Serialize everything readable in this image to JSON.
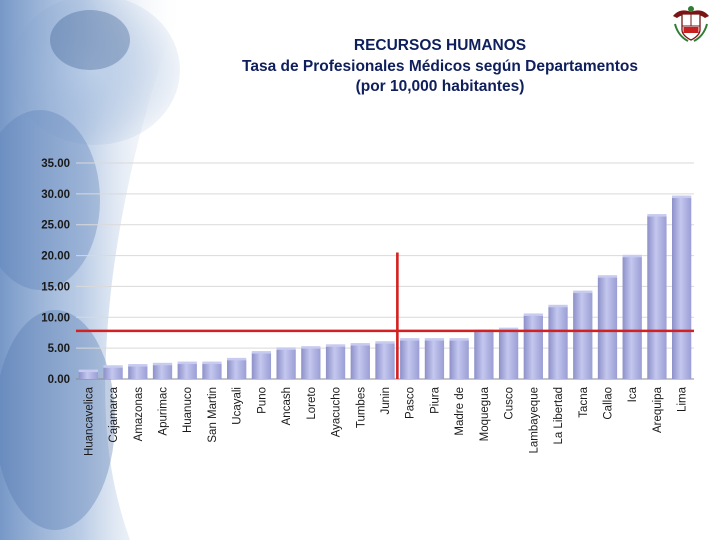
{
  "header": {
    "title": "RECURSOS HUMANOS",
    "subtitle_line1": "Tasa de Profesionales Médicos según Departamentos",
    "subtitle_line2": "(por 10,000 habitantes)"
  },
  "colors": {
    "title": "#0f1f5c",
    "bar": "#aaaee0",
    "reference_line": "#d42020",
    "background_gradient": "#6f93c6"
  },
  "emblem": "peru-coat-of-arms-icon",
  "chart_data": {
    "type": "bar",
    "categories": [
      "Huancavelica",
      "Cajamarca",
      "Amazonas",
      "Apurimac",
      "Huanuco",
      "San Martin",
      "Ucayali",
      "Puno",
      "Ancash",
      "Loreto",
      "Ayacucho",
      "Tumbes",
      "Junin",
      "Pasco",
      "Piura",
      "Madre de",
      "Moquegua",
      "Cusco",
      "Lambayeque",
      "La Libertad",
      "Tacna",
      "Callao",
      "Ica",
      "Arequipa",
      "Lima"
    ],
    "values": [
      1.2,
      1.9,
      2.1,
      2.3,
      2.5,
      2.5,
      3.1,
      4.2,
      4.8,
      5.0,
      5.3,
      5.5,
      5.8,
      6.3,
      6.3,
      6.3,
      7.7,
      8.0,
      10.3,
      11.7,
      14.0,
      16.5,
      19.8,
      26.4,
      29.4
    ],
    "ylim": [
      0,
      35
    ],
    "yticks": [
      "0.00",
      "5.00",
      "10.00",
      "15.00",
      "20.00",
      "25.00",
      "30.00",
      "35.00"
    ],
    "grid": true,
    "reference_lines": {
      "horizontal_value": 7.8,
      "vertical_category": "Junin"
    },
    "title": "",
    "xlabel": "",
    "ylabel": ""
  }
}
